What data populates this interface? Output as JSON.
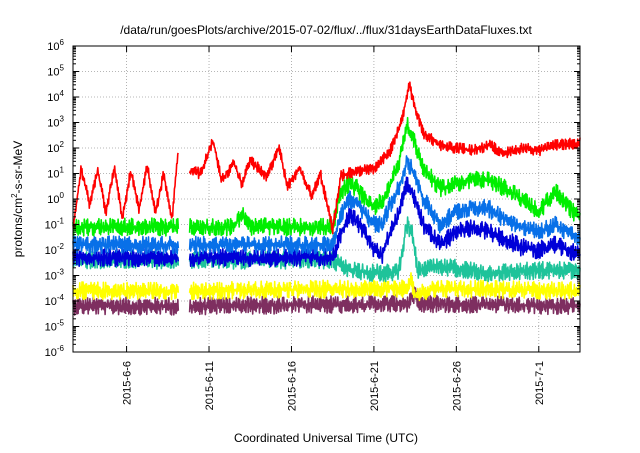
{
  "chart_data": {
    "type": "line",
    "title": "/data/run/goesPlots/archive/2015-07-02/flux/../flux/31daysEarthDataFluxes.txt",
    "xlabel": "Coordinated Universal Time (UTC)",
    "ylabel": {
      "prefix": "protons/cm",
      "sup": "2",
      "suffix": "-s-sr-MeV"
    },
    "yscale": "log",
    "ylim_exp": [
      -6,
      6
    ],
    "y_ticks": [
      {
        "base": "10",
        "exp": "-6"
      },
      {
        "base": "10",
        "exp": "-5"
      },
      {
        "base": "10",
        "exp": "-4"
      },
      {
        "base": "10",
        "exp": "-3"
      },
      {
        "base": "10",
        "exp": "-2"
      },
      {
        "base": "10",
        "exp": "-1"
      },
      {
        "base": "10",
        "exp": "0"
      },
      {
        "base": "10",
        "exp": "1"
      },
      {
        "base": "10",
        "exp": "2"
      },
      {
        "base": "10",
        "exp": "3"
      },
      {
        "base": "10",
        "exp": "4"
      },
      {
        "base": "10",
        "exp": "5"
      },
      {
        "base": "10",
        "exp": "6"
      }
    ],
    "xlim": [
      "2015-06-02T18:00",
      "2015-07-03T12:00"
    ],
    "x_ticks": [
      {
        "date": "2015-06-06",
        "label": "2015-6-6"
      },
      {
        "date": "2015-06-11",
        "label": "2015-6-11"
      },
      {
        "date": "2015-06-16",
        "label": "2015-6-16"
      },
      {
        "date": "2015-06-21",
        "label": "2015-6-21"
      },
      {
        "date": "2015-06-26",
        "label": "2015-6-26"
      },
      {
        "date": "2015-07-01",
        "label": "2015-7-1"
      }
    ],
    "grid": true,
    "data_gap": [
      "2015-06-09T04:00",
      "2015-06-09T19:00"
    ],
    "series": [
      {
        "color": "#7e2f60",
        "points": [
          [
            "2015-06-02T18:00",
            -4.2
          ],
          [
            "2015-06-09T04:00",
            -4.2
          ],
          [
            "2015-06-09T19:00",
            -4.2
          ],
          [
            "2015-06-23T02:00",
            -4.1
          ],
          [
            "2015-06-23T12:00",
            -3.7
          ],
          [
            "2015-06-23T20:00",
            -4.1
          ],
          [
            "2015-07-03T12:00",
            -4.2
          ]
        ]
      },
      {
        "color": "#ffff00",
        "points": [
          [
            "2015-06-02T18:00",
            -3.6
          ],
          [
            "2015-06-09T04:00",
            -3.6
          ],
          [
            "2015-06-09T19:00",
            -3.6
          ],
          [
            "2015-06-22T00:00",
            -3.5
          ],
          [
            "2015-06-23T00:00",
            -3.5
          ],
          [
            "2015-06-23T06:00",
            -3.2
          ],
          [
            "2015-06-23T12:00",
            -3.8
          ],
          [
            "2015-06-24T12:00",
            -3.5
          ],
          [
            "2015-07-03T12:00",
            -3.6
          ]
        ]
      },
      {
        "color": "#1ec39a",
        "points": [
          [
            "2015-06-02T18:00",
            -2.4
          ],
          [
            "2015-06-09T04:00",
            -2.4
          ],
          [
            "2015-06-09T19:00",
            -2.4
          ],
          [
            "2015-06-18T12:00",
            -2.4
          ],
          [
            "2015-06-19T06:00",
            -2.7
          ],
          [
            "2015-06-20T00:00",
            -2.8
          ],
          [
            "2015-06-21T00:00",
            -2.9
          ],
          [
            "2015-06-22T00:00",
            -2.9
          ],
          [
            "2015-06-22T12:00",
            -2.8
          ],
          [
            "2015-06-23T00:00",
            -1.0
          ],
          [
            "2015-06-23T08:00",
            -1.4
          ],
          [
            "2015-06-23T16:00",
            -2.8
          ],
          [
            "2015-06-24T12:00",
            -2.7
          ],
          [
            "2015-06-26T00:00",
            -2.7
          ],
          [
            "2015-06-28T00:00",
            -2.9
          ],
          [
            "2015-07-01T00:00",
            -2.8
          ],
          [
            "2015-07-03T12:00",
            -2.8
          ]
        ]
      },
      {
        "color": "#0000d8",
        "points": [
          [
            "2015-06-02T18:00",
            -2.3
          ],
          [
            "2015-06-09T04:00",
            -2.3
          ],
          [
            "2015-06-09T19:00",
            -2.3
          ],
          [
            "2015-06-18T12:00",
            -2.3
          ],
          [
            "2015-06-19T00:00",
            -1.4
          ],
          [
            "2015-06-19T12:00",
            -0.6
          ],
          [
            "2015-06-20T00:00",
            -0.9
          ],
          [
            "2015-06-20T12:00",
            -1.4
          ],
          [
            "2015-06-21T00:00",
            -2.0
          ],
          [
            "2015-06-21T12:00",
            -2.2
          ],
          [
            "2015-06-22T00:00",
            -1.3
          ],
          [
            "2015-06-22T12:00",
            -0.6
          ],
          [
            "2015-06-23T00:00",
            0.6
          ],
          [
            "2015-06-23T12:00",
            0.0
          ],
          [
            "2015-06-24T00:00",
            -1.0
          ],
          [
            "2015-06-25T00:00",
            -1.8
          ],
          [
            "2015-06-26T00:00",
            -1.3
          ],
          [
            "2015-06-27T00:00",
            -1.1
          ],
          [
            "2015-06-28T00:00",
            -1.3
          ],
          [
            "2015-06-29T00:00",
            -1.6
          ],
          [
            "2015-06-30T00:00",
            -1.9
          ],
          [
            "2015-07-01T00:00",
            -2.0
          ],
          [
            "2015-07-02T00:00",
            -1.8
          ],
          [
            "2015-07-03T12:00",
            -2.2
          ]
        ]
      },
      {
        "color": "#0870e8",
        "points": [
          [
            "2015-06-02T18:00",
            -1.8
          ],
          [
            "2015-06-09T04:00",
            -1.8
          ],
          [
            "2015-06-09T19:00",
            -1.8
          ],
          [
            "2015-06-18T12:00",
            -1.8
          ],
          [
            "2015-06-19T00:00",
            -0.6
          ],
          [
            "2015-06-19T12:00",
            0.0
          ],
          [
            "2015-06-20T00:00",
            -0.2
          ],
          [
            "2015-06-20T12:00",
            -0.6
          ],
          [
            "2015-06-21T00:00",
            -1.0
          ],
          [
            "2015-06-21T12:00",
            -1.0
          ],
          [
            "2015-06-22T00:00",
            -0.2
          ],
          [
            "2015-06-22T12:00",
            0.4
          ],
          [
            "2015-06-23T00:00",
            1.5
          ],
          [
            "2015-06-23T12:00",
            0.9
          ],
          [
            "2015-06-24T00:00",
            0.0
          ],
          [
            "2015-06-25T00:00",
            -1.0
          ],
          [
            "2015-06-26T00:00",
            -0.5
          ],
          [
            "2015-06-27T00:00",
            -0.3
          ],
          [
            "2015-06-28T00:00",
            -0.4
          ],
          [
            "2015-06-29T00:00",
            -0.8
          ],
          [
            "2015-06-30T00:00",
            -1.1
          ],
          [
            "2015-07-01T00:00",
            -1.3
          ],
          [
            "2015-07-02T00:00",
            -1.0
          ],
          [
            "2015-07-03T12:00",
            -1.6
          ]
        ]
      },
      {
        "color": "#00ee00",
        "points": [
          [
            "2015-06-02T18:00",
            -1.1
          ],
          [
            "2015-06-09T04:00",
            -1.1
          ],
          [
            "2015-06-09T19:00",
            -1.1
          ],
          [
            "2015-06-12T12:00",
            -1.1
          ],
          [
            "2015-06-13T00:00",
            -0.6
          ],
          [
            "2015-06-13T12:00",
            -1.1
          ],
          [
            "2015-06-18T12:00",
            -1.1
          ],
          [
            "2015-06-19T00:00",
            0.3
          ],
          [
            "2015-06-19T12:00",
            0.6
          ],
          [
            "2015-06-20T00:00",
            0.4
          ],
          [
            "2015-06-20T12:00",
            0.0
          ],
          [
            "2015-06-21T00:00",
            -0.3
          ],
          [
            "2015-06-21T12:00",
            -0.1
          ],
          [
            "2015-06-22T00:00",
            0.6
          ],
          [
            "2015-06-22T12:00",
            1.4
          ],
          [
            "2015-06-23T00:00",
            2.9
          ],
          [
            "2015-06-23T12:00",
            2.2
          ],
          [
            "2015-06-24T00:00",
            1.2
          ],
          [
            "2015-06-25T00:00",
            0.4
          ],
          [
            "2015-06-26T00:00",
            0.6
          ],
          [
            "2015-06-27T00:00",
            0.8
          ],
          [
            "2015-06-28T00:00",
            0.7
          ],
          [
            "2015-06-29T00:00",
            0.4
          ],
          [
            "2015-06-30T00:00",
            0.0
          ],
          [
            "2015-07-01T00:00",
            -0.5
          ],
          [
            "2015-07-02T00:00",
            0.3
          ],
          [
            "2015-07-03T12:00",
            -0.8
          ]
        ]
      },
      {
        "color": "#ff0000",
        "points": [
          [
            "2015-06-02T18:00",
            -1.2
          ],
          [
            "2015-06-03T06:00",
            1.2
          ],
          [
            "2015-06-03T18:00",
            -0.2
          ],
          [
            "2015-06-04T06:00",
            1.1
          ],
          [
            "2015-06-04T18:00",
            -0.5
          ],
          [
            "2015-06-05T06:00",
            1.2
          ],
          [
            "2015-06-05T18:00",
            -0.8
          ],
          [
            "2015-06-06T06:00",
            1.1
          ],
          [
            "2015-06-06T18:00",
            -0.4
          ],
          [
            "2015-06-07T06:00",
            1.3
          ],
          [
            "2015-06-07T18:00",
            -0.6
          ],
          [
            "2015-06-08T06:00",
            1.0
          ],
          [
            "2015-06-08T18:00",
            -0.8
          ],
          [
            "2015-06-09T04:00",
            2.2
          ],
          [
            "2015-06-09T19:00",
            1.1
          ],
          [
            "2015-06-10T12:00",
            1.0
          ],
          [
            "2015-06-11T06:00",
            2.3
          ],
          [
            "2015-06-11T18:00",
            0.7
          ],
          [
            "2015-06-12T12:00",
            1.4
          ],
          [
            "2015-06-13T00:00",
            0.6
          ],
          [
            "2015-06-13T12:00",
            1.5
          ],
          [
            "2015-06-14T12:00",
            0.9
          ],
          [
            "2015-06-15T06:00",
            2.0
          ],
          [
            "2015-06-15T18:00",
            0.5
          ],
          [
            "2015-06-16T12:00",
            1.2
          ],
          [
            "2015-06-17T06:00",
            0.1
          ],
          [
            "2015-06-17T18:00",
            1.0
          ],
          [
            "2015-06-18T12:00",
            -1.2
          ],
          [
            "2015-06-19T00:00",
            0.9
          ],
          [
            "2015-06-20T00:00",
            1.1
          ],
          [
            "2015-06-21T00:00",
            1.2
          ],
          [
            "2015-06-22T00:00",
            1.9
          ],
          [
            "2015-06-22T18:00",
            3.2
          ],
          [
            "2015-06-23T03:00",
            4.5
          ],
          [
            "2015-06-23T12:00",
            3.6
          ],
          [
            "2015-06-24T00:00",
            2.6
          ],
          [
            "2015-06-25T00:00",
            2.1
          ],
          [
            "2015-06-26T00:00",
            2.0
          ],
          [
            "2015-06-27T00:00",
            1.9
          ],
          [
            "2015-06-28T00:00",
            2.1
          ],
          [
            "2015-06-29T00:00",
            1.8
          ],
          [
            "2015-06-30T00:00",
            2.0
          ],
          [
            "2015-07-01T00:00",
            1.9
          ],
          [
            "2015-07-02T00:00",
            2.1
          ],
          [
            "2015-07-03T12:00",
            2.2
          ]
        ]
      }
    ]
  }
}
